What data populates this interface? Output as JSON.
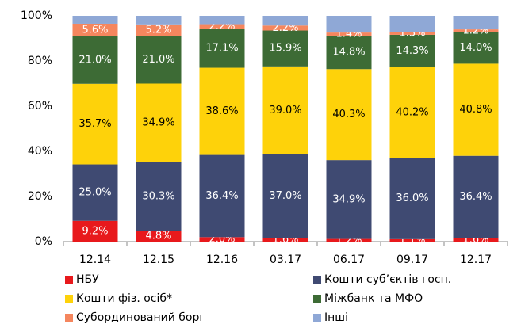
{
  "chart_data": {
    "type": "stacked_bar_100",
    "categories": [
      "12.14",
      "12.15",
      "12.16",
      "03.17",
      "06.17",
      "09.17",
      "12.17"
    ],
    "ylim": [
      0,
      100
    ],
    "yticks": [
      {
        "value": 0,
        "label": "0%"
      },
      {
        "value": 20,
        "label": "20%"
      },
      {
        "value": 40,
        "label": "40%"
      },
      {
        "value": 60,
        "label": "60%"
      },
      {
        "value": 80,
        "label": "80%"
      },
      {
        "value": 100,
        "label": "100%"
      }
    ],
    "grid": false,
    "legend": "bottom",
    "series": [
      {
        "name": "НБУ",
        "color": "#e8191c",
        "values": [
          9.2,
          4.8,
          2.0,
          1.6,
          1.2,
          1.1,
          1.6
        ],
        "value_labels": [
          "9.2%",
          "4.8%",
          "2.0%",
          "1.6%",
          "1.2%",
          "1.1%",
          "1.6%"
        ]
      },
      {
        "name": "Кошти суб’єктів госп.",
        "color": "#3f4a72",
        "values": [
          25.0,
          30.3,
          36.4,
          37.0,
          34.9,
          36.0,
          36.4
        ],
        "value_labels": [
          "25.0%",
          "30.3%",
          "36.4%",
          "37.0%",
          "34.9%",
          "36.0%",
          "36.4%"
        ]
      },
      {
        "name": "Кошти фіз. осіб*",
        "color": "#fed20a",
        "values": [
          35.7,
          34.9,
          38.6,
          39.0,
          40.3,
          40.2,
          40.8
        ],
        "value_labels": [
          "35.7%",
          "34.9%",
          "38.6%",
          "39.0%",
          "40.3%",
          "40.2%",
          "40.8%"
        ]
      },
      {
        "name": "Міжбанк та МФО",
        "color": "#3d6b35",
        "values": [
          21.0,
          21.0,
          17.1,
          15.9,
          14.8,
          14.3,
          14.0
        ],
        "value_labels": [
          "21.0%",
          "21.0%",
          "17.1%",
          "15.9%",
          "14.8%",
          "14.3%",
          "14.0%"
        ]
      },
      {
        "name": "Субординований борг",
        "color": "#f5865e",
        "values": [
          5.6,
          5.2,
          2.2,
          2.2,
          1.4,
          1.3,
          1.2
        ],
        "value_labels": [
          "5.6%",
          "5.2%",
          "2.2%",
          "2.2%",
          "1.4%",
          "1.3%",
          "1.2%"
        ]
      },
      {
        "name": "Інші",
        "color": "#8fa8d6",
        "values": [
          3.5,
          3.8,
          3.7,
          4.3,
          7.4,
          7.1,
          6.0
        ],
        "value_labels": [
          null,
          null,
          null,
          null,
          null,
          null,
          null
        ]
      }
    ]
  }
}
